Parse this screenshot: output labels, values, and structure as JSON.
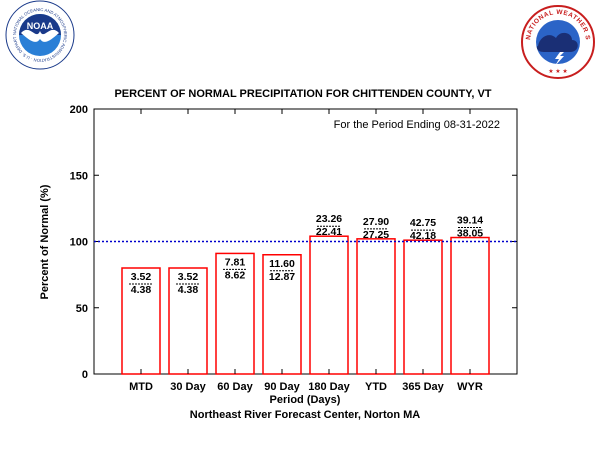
{
  "header": {
    "left_logo": {
      "name": "NOAA",
      "ring_text": "NATIONAL OCEANIC AND ATMOSPHERIC ADMINISTRATION · U.S. DEPARTMENT OF COMMERCE ·",
      "colors": {
        "navy": "#1a3a8a",
        "sky": "#2a7fd6",
        "white": "#ffffff"
      }
    },
    "right_logo": {
      "ring_text": "NATIONAL WEATHER SERVICE",
      "colors": {
        "ring": "#c81e1e",
        "sky": "#2b64c7",
        "cloud": "#1a2f75"
      }
    }
  },
  "colors": {
    "bar_edge": "#ff0000",
    "bar_fill": "#ffffff",
    "reference_line": "#0000cc",
    "axis": "#000000"
  },
  "chart_data": {
    "type": "bar",
    "title": "PERCENT OF NORMAL PRECIPITATION FOR CHITTENDEN COUNTY, VT",
    "subtitle": "For the Period Ending 08-31-2022",
    "xlabel": "Period (Days)",
    "ylabel": "Percent of Normal (%)",
    "footer": "Northeast River Forecast Center, Norton MA",
    "ylim": [
      0,
      200
    ],
    "yticks": [
      0,
      50,
      100,
      150,
      200
    ],
    "reference_line": 100,
    "categories": [
      "MTD",
      "30 Day",
      "60 Day",
      "90 Day",
      "180 Day",
      "YTD",
      "365 Day",
      "WYR"
    ],
    "values": [
      80,
      80,
      91,
      90,
      104,
      102,
      101,
      103
    ],
    "observed": [
      "3.52",
      "3.52",
      "7.81",
      "11.60",
      "23.26",
      "27.90",
      "42.75",
      "39.14"
    ],
    "normal": [
      "4.38",
      "4.38",
      "8.62",
      "12.87",
      "22.41",
      "27.25",
      "42.18",
      "38.05"
    ]
  }
}
